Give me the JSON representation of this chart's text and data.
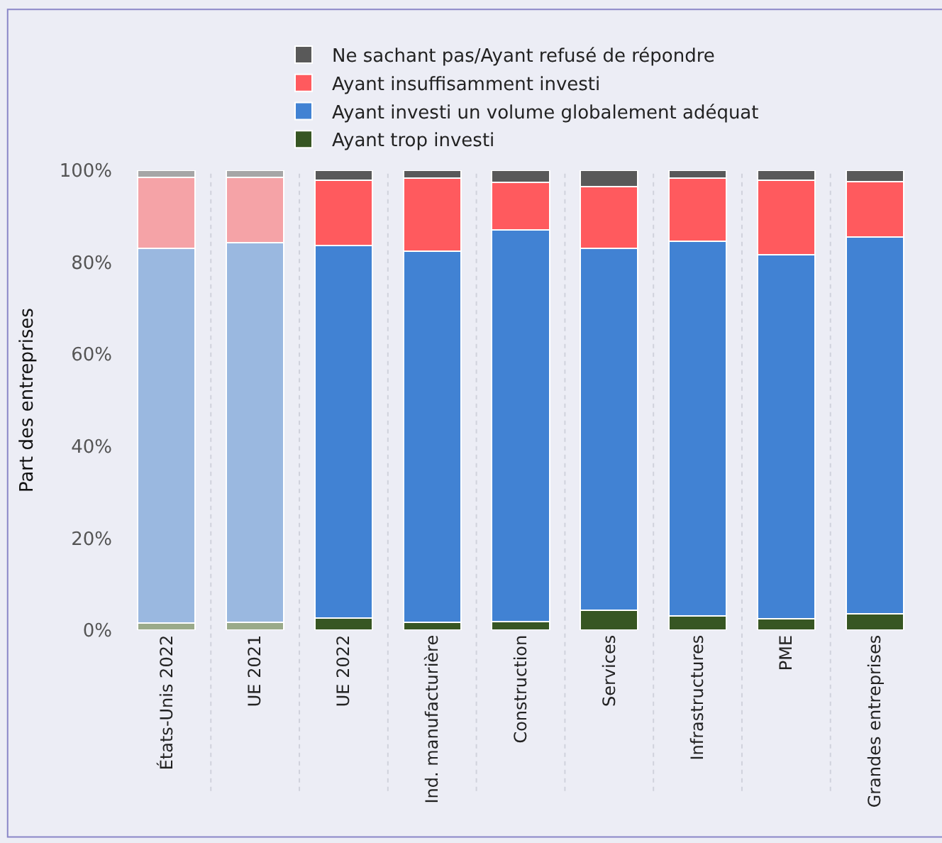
{
  "chart_data": {
    "type": "bar",
    "stacked": true,
    "ylabel": "Part des entreprises",
    "categories": [
      "États-Unis 2022",
      "UE 2021",
      "UE 2022",
      "Ind. manufacturière",
      "Construction",
      "Services",
      "Infrastructures",
      "PME",
      "Grandes entreprises"
    ],
    "series": [
      {
        "name": "Ayant trop investi",
        "color": "#375623",
        "colors": [
          "#9aaa8a",
          "#9aaa8a",
          "#375623",
          "#375623",
          "#375623",
          "#375623",
          "#375623",
          "#375623",
          "#375623"
        ],
        "values": [
          1.5,
          1.7,
          2.7,
          1.7,
          1.9,
          4.3,
          3.1,
          2.4,
          3.6
        ]
      },
      {
        "name": "Ayant investi un volume globalement adéquat",
        "color": "#4182d3",
        "colors": [
          "#9ab8e0",
          "#9ab8e0",
          "#4182d3",
          "#4182d3",
          "#4182d3",
          "#4182d3",
          "#4182d3",
          "#4182d3",
          "#4182d3"
        ],
        "values": [
          81.6,
          82.6,
          80.9,
          80.7,
          85.2,
          78.8,
          81.4,
          79.3,
          81.9
        ]
      },
      {
        "name": "Ayant insuffisamment investi",
        "color": "#ff5a5e",
        "colors": [
          "#f5a3a7",
          "#f5a3a7",
          "#ff5a5e",
          "#ff5a5e",
          "#ff5a5e",
          "#ff5a5e",
          "#ff5a5e",
          "#ff5a5e",
          "#ff5a5e"
        ],
        "values": [
          15.4,
          14.2,
          14.3,
          15.9,
          10.3,
          13.4,
          13.8,
          16.2,
          12.1
        ]
      },
      {
        "name": "Ne sachant pas/Ayant refusé de répondre",
        "color": "#595959",
        "colors": [
          "#a6a6a6",
          "#a6a6a6",
          "#595959",
          "#595959",
          "#595959",
          "#595959",
          "#595959",
          "#595959",
          "#595959"
        ],
        "values": [
          1.5,
          1.5,
          2.1,
          1.7,
          2.6,
          3.5,
          1.7,
          2.1,
          2.4
        ]
      }
    ],
    "ylim": [
      0,
      100
    ],
    "yticks": [
      {
        "value": 0,
        "label": "0%"
      },
      {
        "value": 20,
        "label": "20%"
      },
      {
        "value": 40,
        "label": "40%"
      },
      {
        "value": 60,
        "label": "60%"
      },
      {
        "value": 80,
        "label": "80%"
      },
      {
        "value": 100,
        "label": "100%"
      }
    ],
    "grid": false,
    "legend": "top"
  }
}
